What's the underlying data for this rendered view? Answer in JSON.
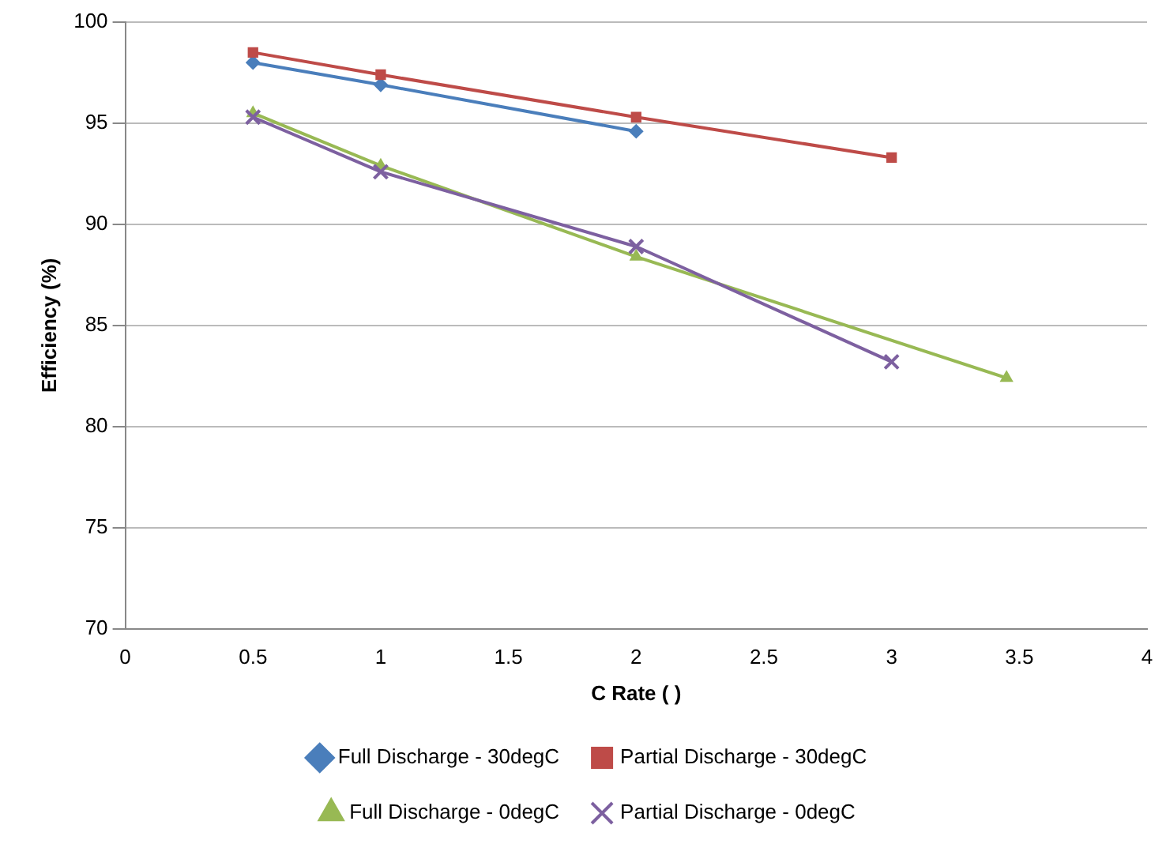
{
  "chart_data": {
    "type": "scatter",
    "xlabel": "C Rate ( )",
    "ylabel": "Efficiency (%)",
    "xlim": [
      0,
      4
    ],
    "xticks": [
      0,
      0.5,
      1,
      1.5,
      2,
      2.5,
      3,
      3.5,
      4
    ],
    "ylim": [
      70,
      100
    ],
    "yticks": [
      70,
      75,
      80,
      85,
      90,
      95,
      100
    ],
    "grid": "y",
    "legend": "bottom",
    "line_style": "solid",
    "series": [
      {
        "name": "Full Discharge - 30degC",
        "type": "line",
        "color": "#4a7ebb",
        "marker": "diamond",
        "x": [
          0.5,
          1,
          2
        ],
        "values": [
          98,
          96.9,
          94.6
        ]
      },
      {
        "name": "Partial Discharge - 30degC",
        "type": "line",
        "color": "#be4b48",
        "marker": "square",
        "x": [
          0.5,
          1,
          2,
          3
        ],
        "values": [
          98.5,
          97.4,
          95.3,
          93.3
        ]
      },
      {
        "name": "Full Discharge - 0degC",
        "type": "line",
        "color": "#98b954",
        "marker": "triangle",
        "x": [
          0.5,
          1,
          2,
          3.45
        ],
        "values": [
          95.5,
          92.9,
          88.4,
          82.4
        ]
      },
      {
        "name": "Partial Discharge - 0degC",
        "type": "line",
        "color": "#7d60a0",
        "marker": "cross",
        "x": [
          0.5,
          1,
          2,
          3
        ],
        "values": [
          95.3,
          92.6,
          88.9,
          83.2
        ]
      }
    ]
  }
}
